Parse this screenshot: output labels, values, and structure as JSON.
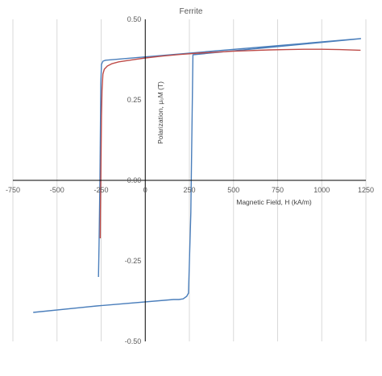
{
  "chart_data": {
    "type": "line",
    "title": "Ferrite",
    "xlabel": "Magnetic Field, H (kA/m)",
    "ylabel": "Polarization, μ₀M (T)",
    "xlim": [
      -750,
      1250
    ],
    "ylim": [
      -0.5,
      0.5
    ],
    "x_ticks": [
      -750,
      -500,
      -250,
      0,
      250,
      500,
      750,
      1000,
      1250
    ],
    "x_tick_labels": [
      "-750",
      "-500",
      "-250",
      "0",
      "250",
      "500",
      "750",
      "1000",
      "1250"
    ],
    "y_ticks": [
      -0.5,
      -0.25,
      0,
      0.25,
      0.5
    ],
    "y_tick_labels": [
      "-0.50",
      "-0.25",
      "0.00",
      "0.25",
      "0.50"
    ],
    "grid": "vertical",
    "series": [
      {
        "color": "#4a7ebb",
        "x": [
          -635,
          -275,
          160,
          190,
          215,
          235,
          245,
          258,
          270,
          1220,
          -225,
          -240,
          -248,
          -252,
          -257,
          -262,
          -265
        ],
        "y": [
          -0.41,
          -0.39,
          -0.37,
          -0.37,
          -0.368,
          -0.36,
          -0.35,
          -0.1,
          0.39,
          0.44,
          0.373,
          0.37,
          0.36,
          0.3,
          0.0,
          -0.2,
          -0.3
        ]
      },
      {
        "color": "#be4b48",
        "x": [
          -255,
          -254,
          -252,
          -250,
          -248,
          -245,
          -240,
          -232,
          -215,
          -190,
          -150,
          -100,
          -50,
          0,
          100,
          200,
          300,
          400,
          500,
          600,
          700,
          800,
          900,
          1000,
          1100,
          1220
        ],
        "y": [
          -0.18,
          -0.1,
          0.0,
          0.1,
          0.2,
          0.28,
          0.33,
          0.345,
          0.355,
          0.362,
          0.368,
          0.372,
          0.376,
          0.38,
          0.386,
          0.391,
          0.395,
          0.398,
          0.401,
          0.403,
          0.405,
          0.406,
          0.407,
          0.407,
          0.406,
          0.404
        ]
      }
    ]
  }
}
